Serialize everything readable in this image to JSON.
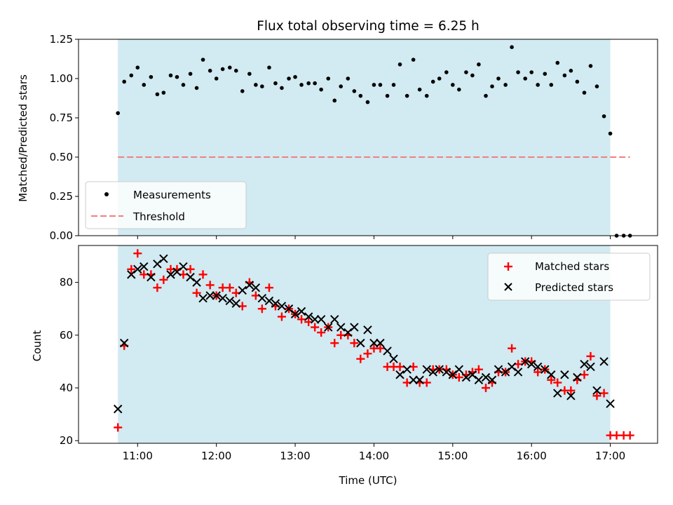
{
  "chart_data": [
    {
      "type": "scatter",
      "title": "Flux total observing time = 6.25 h",
      "xlabel": "",
      "ylabel": "Matched/Predicted stars",
      "xlim": [
        10.25,
        17.6
      ],
      "ylim": [
        0.0,
        1.25
      ],
      "yticks": [
        0.0,
        0.25,
        0.5,
        0.75,
        1.0,
        1.25
      ],
      "ytick_labels": [
        "0.00",
        "0.25",
        "0.50",
        "0.75",
        "1.00",
        "1.25"
      ],
      "shaded_interval": [
        10.75,
        17.0
      ],
      "threshold": {
        "name": "Threshold",
        "value": 0.5,
        "x_start": 10.75,
        "x_end": 17.25,
        "color": "#f08080"
      },
      "legend_position": "bottom-left",
      "series": [
        {
          "name": "Measurements",
          "marker": "dot",
          "color": "#000000",
          "x": [
            10.75,
            10.83,
            10.92,
            11.0,
            11.08,
            11.17,
            11.25,
            11.33,
            11.42,
            11.5,
            11.58,
            11.67,
            11.75,
            11.83,
            11.92,
            12.0,
            12.08,
            12.17,
            12.25,
            12.33,
            12.42,
            12.5,
            12.58,
            12.67,
            12.75,
            12.83,
            12.92,
            13.0,
            13.08,
            13.17,
            13.25,
            13.33,
            13.42,
            13.5,
            13.58,
            13.67,
            13.75,
            13.83,
            13.92,
            14.0,
            14.08,
            14.17,
            14.25,
            14.33,
            14.42,
            14.5,
            14.58,
            14.67,
            14.75,
            14.83,
            14.92,
            15.0,
            15.08,
            15.17,
            15.25,
            15.33,
            15.42,
            15.5,
            15.58,
            15.67,
            15.75,
            15.83,
            15.92,
            16.0,
            16.08,
            16.17,
            16.25,
            16.33,
            16.42,
            16.5,
            16.58,
            16.67,
            16.75,
            16.83,
            16.92,
            17.0,
            17.08,
            17.17,
            17.25
          ],
          "y": [
            0.78,
            0.98,
            1.02,
            1.07,
            0.96,
            1.01,
            0.9,
            0.91,
            1.02,
            1.01,
            0.96,
            1.03,
            0.94,
            1.12,
            1.05,
            1.0,
            1.06,
            1.07,
            1.05,
            0.92,
            1.03,
            0.96,
            0.95,
            1.07,
            0.97,
            0.94,
            1.0,
            1.01,
            0.96,
            0.97,
            0.97,
            0.93,
            1.0,
            0.86,
            0.95,
            1.0,
            0.92,
            0.89,
            0.85,
            0.96,
            0.96,
            0.89,
            0.96,
            1.09,
            0.89,
            1.12,
            0.93,
            0.89,
            0.98,
            1.0,
            1.04,
            0.96,
            0.93,
            1.04,
            1.02,
            1.09,
            0.89,
            0.95,
            1.0,
            0.96,
            1.2,
            1.04,
            1.0,
            1.04,
            0.96,
            1.03,
            0.96,
            1.1,
            1.02,
            1.05,
            0.98,
            0.91,
            1.08,
            0.95,
            0.76,
            0.65,
            0.0,
            0.0,
            0.0
          ]
        }
      ]
    },
    {
      "type": "scatter",
      "title": "",
      "xlabel": "Time (UTC)",
      "ylabel": "Count",
      "xlim": [
        10.25,
        17.6
      ],
      "ylim": [
        19,
        94
      ],
      "yticks": [
        20,
        40,
        60,
        80
      ],
      "ytick_labels": [
        "20",
        "40",
        "60",
        "80"
      ],
      "xticks": [
        11,
        12,
        13,
        14,
        15,
        16,
        17
      ],
      "xtick_labels": [
        "11:00",
        "12:00",
        "13:00",
        "14:00",
        "15:00",
        "16:00",
        "17:00"
      ],
      "shaded_interval": [
        10.75,
        17.0
      ],
      "legend_position": "top-right",
      "series": [
        {
          "name": "Matched stars",
          "marker": "plus",
          "color": "#ff0000",
          "x": [
            10.75,
            10.83,
            10.92,
            11.0,
            11.08,
            11.17,
            11.25,
            11.33,
            11.42,
            11.5,
            11.58,
            11.67,
            11.75,
            11.83,
            11.92,
            12.0,
            12.08,
            12.17,
            12.25,
            12.33,
            12.42,
            12.5,
            12.58,
            12.67,
            12.75,
            12.83,
            12.92,
            13.0,
            13.08,
            13.17,
            13.25,
            13.33,
            13.42,
            13.5,
            13.58,
            13.67,
            13.75,
            13.83,
            13.92,
            14.0,
            14.08,
            14.17,
            14.25,
            14.33,
            14.42,
            14.5,
            14.58,
            14.67,
            14.75,
            14.83,
            14.92,
            15.0,
            15.08,
            15.17,
            15.25,
            15.33,
            15.42,
            15.5,
            15.58,
            15.67,
            15.75,
            15.83,
            15.92,
            16.0,
            16.08,
            16.17,
            16.25,
            16.33,
            16.42,
            16.5,
            16.58,
            16.67,
            16.75,
            16.83,
            16.92,
            17.0,
            17.08,
            17.17,
            17.25
          ],
          "y": [
            25,
            56,
            85,
            91,
            83,
            83,
            78,
            81,
            85,
            85,
            83,
            85,
            76,
            83,
            79,
            75,
            78,
            78,
            76,
            71,
            80,
            75,
            70,
            78,
            71,
            67,
            70,
            68,
            66,
            65,
            63,
            61,
            63,
            57,
            60,
            60,
            57,
            51,
            53,
            55,
            55,
            48,
            48,
            48,
            42,
            48,
            42,
            42,
            47,
            47,
            47,
            45,
            44,
            45,
            46,
            47,
            40,
            42,
            46,
            46,
            55,
            49,
            50,
            50,
            46,
            47,
            43,
            42,
            39,
            39,
            43,
            45,
            52,
            37,
            38,
            22,
            22,
            22,
            22
          ]
        },
        {
          "name": "Predicted stars",
          "marker": "x",
          "color": "#000000",
          "x": [
            10.75,
            10.83,
            10.92,
            11.0,
            11.08,
            11.17,
            11.25,
            11.33,
            11.42,
            11.5,
            11.58,
            11.67,
            11.75,
            11.83,
            11.92,
            12.0,
            12.08,
            12.17,
            12.25,
            12.33,
            12.42,
            12.5,
            12.58,
            12.67,
            12.75,
            12.83,
            12.92,
            13.0,
            13.08,
            13.17,
            13.25,
            13.33,
            13.42,
            13.5,
            13.58,
            13.67,
            13.75,
            13.83,
            13.92,
            14.0,
            14.08,
            14.17,
            14.25,
            14.33,
            14.42,
            14.5,
            14.58,
            14.67,
            14.75,
            14.83,
            14.92,
            15.0,
            15.08,
            15.17,
            15.25,
            15.33,
            15.42,
            15.5,
            15.58,
            15.67,
            15.75,
            15.83,
            15.92,
            16.0,
            16.08,
            16.17,
            16.25,
            16.33,
            16.42,
            16.5,
            16.58,
            16.67,
            16.75,
            16.83,
            16.92,
            17.0
          ],
          "y": [
            32,
            57,
            83,
            85,
            86,
            82,
            87,
            89,
            83,
            84,
            86,
            82,
            80,
            74,
            75,
            75,
            74,
            73,
            72,
            77,
            79,
            78,
            74,
            73,
            72,
            71,
            70,
            68,
            69,
            67,
            66,
            66,
            63,
            66,
            63,
            61,
            63,
            57,
            62,
            57,
            57,
            54,
            51,
            45,
            47,
            43,
            43,
            47,
            46,
            47,
            46,
            45,
            47,
            44,
            45,
            43,
            44,
            43,
            47,
            46,
            48,
            46,
            50,
            49,
            48,
            47,
            45,
            38,
            45,
            37,
            44,
            49,
            48,
            39,
            50,
            34
          ]
        }
      ]
    }
  ]
}
